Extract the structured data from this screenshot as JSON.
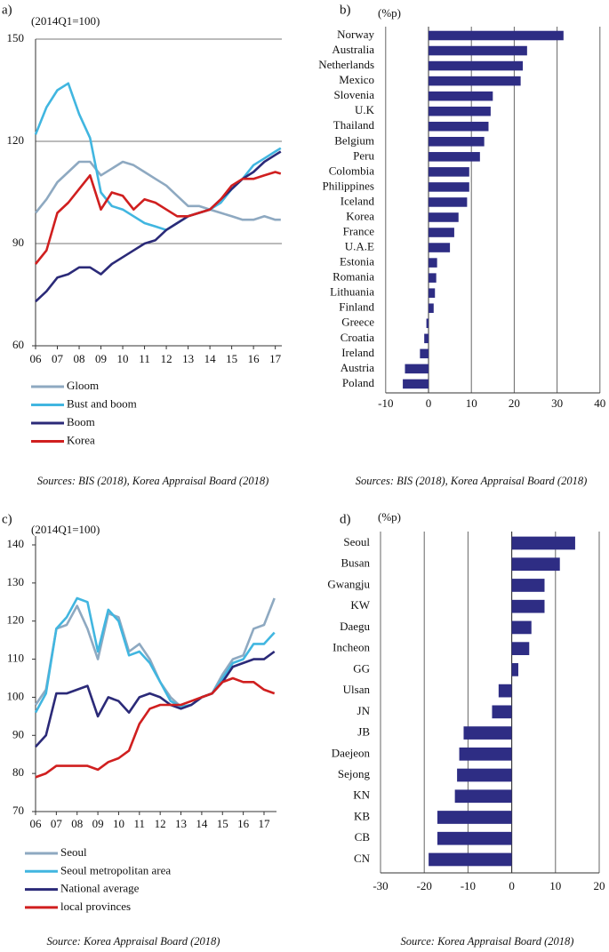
{
  "chart_data": [
    {
      "type": "line",
      "panel": "a)",
      "y_label": "(2014Q1=100)",
      "source": "Sources: BIS (2018), Korea Appraisal Board (2018)",
      "x": [
        2006,
        2006.5,
        2007,
        2007.5,
        2008,
        2008.5,
        2009,
        2009.5,
        2010,
        2010.5,
        2011,
        2011.5,
        2012,
        2012.5,
        2013,
        2013.5,
        2014,
        2014.5,
        2015,
        2015.5,
        2016,
        2016.5,
        2017,
        2017.25
      ],
      "xlim": [
        2006,
        2017.3
      ],
      "xticks": [
        {
          "value": 2006,
          "label": "06"
        },
        {
          "value": 2007,
          "label": "07"
        },
        {
          "value": 2008,
          "label": "08"
        },
        {
          "value": 2009,
          "label": "09"
        },
        {
          "value": 2010,
          "label": "10"
        },
        {
          "value": 2011,
          "label": "11"
        },
        {
          "value": 2012,
          "label": "12"
        },
        {
          "value": 2013,
          "label": "13"
        },
        {
          "value": 2014,
          "label": "14"
        },
        {
          "value": 2015,
          "label": "15"
        },
        {
          "value": 2016,
          "label": "16"
        },
        {
          "value": 2017,
          "label": "17"
        }
      ],
      "ylim": [
        60,
        150
      ],
      "yticks": [
        60,
        90,
        120,
        150
      ],
      "grid": true,
      "series": [
        {
          "name": "Gloom",
          "color": "#8ea9c1",
          "values": [
            99,
            103,
            108,
            111,
            114,
            114,
            110,
            112,
            114,
            113,
            111,
            109,
            107,
            104,
            101,
            101,
            100,
            99,
            98,
            97,
            97,
            98,
            97,
            97
          ]
        },
        {
          "name": "Bust and boom",
          "color": "#41b6e0",
          "values": [
            122,
            130,
            135,
            137,
            128,
            121,
            105,
            101,
            100,
            98,
            96,
            95,
            94,
            96,
            98,
            99,
            100,
            102,
            106,
            109,
            113,
            115,
            117,
            118
          ]
        },
        {
          "name": "Boom",
          "color": "#2b2a78",
          "values": [
            73,
            76,
            80,
            81,
            83,
            83,
            81,
            84,
            86,
            88,
            90,
            91,
            94,
            96,
            98,
            99,
            100,
            103,
            106,
            109,
            111,
            114,
            116,
            117
          ]
        },
        {
          "name": "Korea",
          "color": "#d01f1f",
          "values": [
            84,
            88,
            99,
            102,
            106,
            110,
            100,
            105,
            104,
            100,
            103,
            102,
            100,
            98,
            98,
            99,
            100,
            103,
            107,
            109,
            109,
            110,
            111,
            110.5
          ]
        }
      ]
    },
    {
      "type": "barh",
      "panel": "b)",
      "x_label": "(%p)",
      "source": "Sources: BIS (2018), Korea Appraisal Board (2018)",
      "categories": [
        "Norway",
        "Australia",
        "Netherlands",
        "Mexico",
        "Slovenia",
        "U.K",
        "Thailand",
        "Belgium",
        "Peru",
        "Colombia",
        "Philippines",
        "Iceland",
        "Korea",
        "France",
        "U.A.E",
        "Estonia",
        "Romania",
        "Lithuania",
        "Finland",
        "Greece",
        "Croatia",
        "Ireland",
        "Austria",
        "Poland"
      ],
      "values": [
        31.5,
        23,
        22,
        21.5,
        15,
        14.5,
        14,
        13,
        12,
        9.5,
        9.5,
        9,
        7,
        6,
        5,
        2,
        1.8,
        1.5,
        1.2,
        -0.5,
        -1,
        -2,
        -5.5,
        -6
      ],
      "color": "#2e2d84",
      "xlim": [
        -10,
        40
      ],
      "xticks": [
        -10,
        0,
        10,
        20,
        30,
        40
      ],
      "grid": true
    },
    {
      "type": "line",
      "panel": "c)",
      "y_label": "(2014Q1=100)",
      "source": "Source: Korea Appraisal Board (2018)",
      "x": [
        2006,
        2006.5,
        2007,
        2007.5,
        2008,
        2008.5,
        2009,
        2009.5,
        2010,
        2010.5,
        2011,
        2011.5,
        2012,
        2012.5,
        2013,
        2013.5,
        2014,
        2014.5,
        2015,
        2015.5,
        2016,
        2016.5,
        2017,
        2017.5
      ],
      "xlim": [
        2006,
        2017.6
      ],
      "xticks": [
        {
          "value": 2006,
          "label": "06"
        },
        {
          "value": 2007,
          "label": "07"
        },
        {
          "value": 2008,
          "label": "08"
        },
        {
          "value": 2009,
          "label": "09"
        },
        {
          "value": 2010,
          "label": "10"
        },
        {
          "value": 2011,
          "label": "11"
        },
        {
          "value": 2012,
          "label": "12"
        },
        {
          "value": 2013,
          "label": "13"
        },
        {
          "value": 2014,
          "label": "14"
        },
        {
          "value": 2015,
          "label": "15"
        },
        {
          "value": 2016,
          "label": "16"
        },
        {
          "value": 2017,
          "label": "17"
        }
      ],
      "ylim": [
        70,
        140
      ],
      "yticks": [
        70,
        80,
        90,
        100,
        110,
        120,
        130,
        140
      ],
      "grid": false,
      "series": [
        {
          "name": "Seoul",
          "color": "#8ea9c1",
          "values": [
            98,
            102,
            118,
            119,
            124,
            118,
            110,
            122,
            121,
            112,
            114,
            110,
            104,
            100,
            97.5,
            98,
            100,
            101,
            106,
            110,
            111,
            118,
            119,
            126
          ]
        },
        {
          "name": "Seoul metropolitan area",
          "color": "#41b6e0",
          "values": [
            96,
            101,
            118,
            121,
            126,
            125,
            112,
            123,
            120,
            111,
            112,
            109,
            104,
            99,
            97.5,
            98,
            100,
            101,
            105,
            109,
            110,
            114,
            114,
            117
          ]
        },
        {
          "name": "National average",
          "color": "#2b2a78",
          "values": [
            87,
            90,
            101,
            101,
            102,
            103,
            95,
            100,
            99,
            96,
            100,
            101,
            100,
            98,
            97,
            98,
            100,
            101,
            104,
            108,
            109,
            110,
            110,
            112
          ]
        },
        {
          "name": "local provinces",
          "color": "#d01f1f",
          "values": [
            79,
            80,
            82,
            82,
            82,
            82,
            81,
            83,
            84,
            86,
            93,
            97,
            98,
            98,
            98,
            99,
            100,
            101,
            104,
            105,
            104,
            104,
            102,
            101
          ]
        }
      ]
    },
    {
      "type": "barh",
      "panel": "d)",
      "x_label": "(%p)",
      "source": "Source: Korea Appraisal Board (2018)",
      "categories": [
        "Seoul",
        "Busan",
        "Gwangju",
        "KW",
        "Daegu",
        "Incheon",
        "GG",
        "Ulsan",
        "JN",
        "JB",
        "Daejeon",
        "Sejong",
        "KN",
        "KB",
        "CB",
        "CN"
      ],
      "values": [
        14.5,
        11,
        7.5,
        7.5,
        4.5,
        4,
        1.5,
        -3,
        -4.5,
        -11,
        -12,
        -12.5,
        -13,
        -17,
        -17,
        -19
      ],
      "color": "#2e2d84",
      "xlim": [
        -30,
        20
      ],
      "xticks": [
        -30,
        -20,
        -10,
        0,
        10,
        20
      ],
      "grid": true
    }
  ]
}
